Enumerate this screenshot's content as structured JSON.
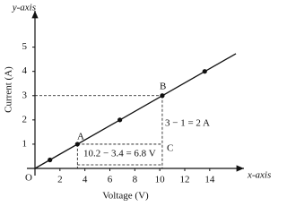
{
  "chart_data": {
    "type": "line",
    "x_label": "Voltage (V)",
    "y_label": "Current (A)",
    "x_axis_name": "x-axis",
    "y_axis_name": "y-axis",
    "origin_label": "O",
    "xlim": [
      0,
      16.6
    ],
    "ylim": [
      0,
      6.5
    ],
    "xticks": [
      2,
      4,
      6,
      8,
      10,
      12,
      14
    ],
    "yticks": [
      1,
      2,
      3,
      4,
      5
    ],
    "fit_line": {
      "color": "#111111",
      "x": [
        0,
        16.1
      ],
      "values": [
        0,
        4.73
      ]
    },
    "points": {
      "color": "#111111",
      "x": [
        1.2,
        3.4,
        6.8,
        10.2,
        13.6
      ],
      "values": [
        0.35,
        1,
        2,
        3,
        4
      ]
    },
    "annotations": {
      "point_a": "A",
      "point_b": "B",
      "point_c": "C",
      "rise": "3 − 1 = 2 A",
      "run": "10.2 − 3.4 = 6.8 V"
    }
  }
}
